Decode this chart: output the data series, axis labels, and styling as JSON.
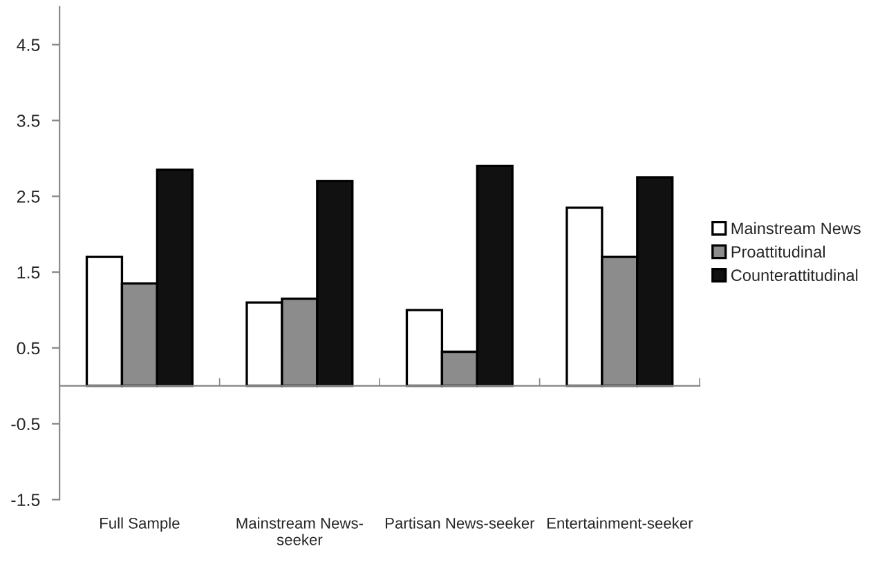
{
  "chart_data": {
    "type": "bar",
    "categories": [
      "Full Sample",
      "Mainstream News-\nseeker",
      "Partisan News-seeker",
      "Entertainment-seeker"
    ],
    "series": [
      {
        "name": "Mainstream News",
        "color": "#ffffff",
        "values": [
          1.7,
          1.1,
          1.0,
          2.35
        ]
      },
      {
        "name": "Proattitudinal",
        "color": "#8c8c8c",
        "values": [
          1.35,
          1.15,
          0.45,
          1.7
        ]
      },
      {
        "name": "Counterattitudinal",
        "color": "#111111",
        "values": [
          2.85,
          2.7,
          2.9,
          2.75
        ]
      }
    ],
    "ylim": [
      -1.5,
      5
    ],
    "yticks": [
      4.5,
      3.5,
      2.5,
      1.5,
      0.5,
      -0.5,
      -1.5
    ],
    "grid": false,
    "legend": "right"
  }
}
